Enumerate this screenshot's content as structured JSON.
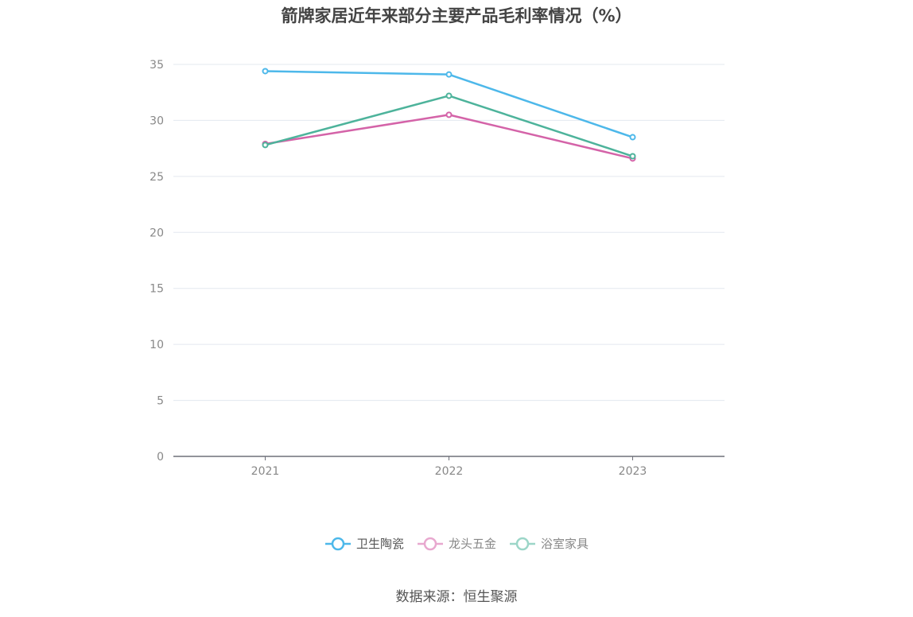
{
  "title": "箭牌家居近年来部分主要产品毛利率情况（%）",
  "source": "数据来源：恒生聚源",
  "colors": {
    "卫生陶瓷": "#4db8ea",
    "龙头五金": "#d463a8",
    "浴室家具": "#4db39b",
    "legend_faded_龙头五金": "#e8a8cf",
    "legend_faded_浴室家具": "#9cd6c8",
    "grid": "#e3e8ef",
    "axis": "#6e7079"
  },
  "chart_data": {
    "type": "line",
    "title": "箭牌家居近年来部分主要产品毛利率情况（%）",
    "categories": [
      "2021",
      "2022",
      "2023"
    ],
    "ylim": [
      0,
      35
    ],
    "yticks": [
      "0",
      "5",
      "10",
      "15",
      "20",
      "25",
      "30",
      "35"
    ],
    "grid": true,
    "legend_position": "bottom",
    "series": [
      {
        "name": "卫生陶瓷",
        "values": [
          34.4,
          34.1,
          28.5
        ]
      },
      {
        "name": "龙头五金",
        "values": [
          27.9,
          30.5,
          26.6
        ]
      },
      {
        "name": "浴室家具",
        "values": [
          27.8,
          32.2,
          26.8
        ]
      }
    ]
  }
}
